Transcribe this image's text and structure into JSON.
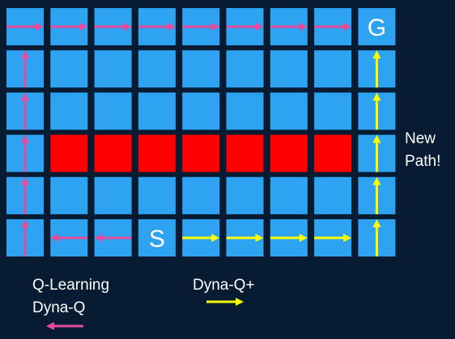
{
  "colors": {
    "background": "#071c33",
    "cell": "#2ea3f2",
    "wall": "#ff0000",
    "q_arrow": "#e84a9a",
    "dyna_plus_arrow": "#ffff00",
    "cell_text": "#ffffff"
  },
  "grid": {
    "rows": 6,
    "cols": 9,
    "walls": [
      [
        3,
        1
      ],
      [
        3,
        2
      ],
      [
        3,
        3
      ],
      [
        3,
        4
      ],
      [
        3,
        5
      ],
      [
        3,
        6
      ],
      [
        3,
        7
      ]
    ],
    "goal": {
      "row": 0,
      "col": 8,
      "label": "G"
    },
    "start": {
      "row": 5,
      "col": 3,
      "label": "S"
    }
  },
  "paths": {
    "q_learning_dyna_q": [
      {
        "row": 5,
        "col": 2,
        "dir": "left"
      },
      {
        "row": 5,
        "col": 1,
        "dir": "left"
      },
      {
        "row": 5,
        "col": 0,
        "dir": "up"
      },
      {
        "row": 4,
        "col": 0,
        "dir": "up"
      },
      {
        "row": 3,
        "col": 0,
        "dir": "up"
      },
      {
        "row": 2,
        "col": 0,
        "dir": "up"
      },
      {
        "row": 1,
        "col": 0,
        "dir": "up"
      },
      {
        "row": 0,
        "col": 0,
        "dir": "right"
      },
      {
        "row": 0,
        "col": 1,
        "dir": "right"
      },
      {
        "row": 0,
        "col": 2,
        "dir": "right"
      },
      {
        "row": 0,
        "col": 3,
        "dir": "right"
      },
      {
        "row": 0,
        "col": 4,
        "dir": "right"
      },
      {
        "row": 0,
        "col": 5,
        "dir": "right"
      },
      {
        "row": 0,
        "col": 6,
        "dir": "right"
      },
      {
        "row": 0,
        "col": 7,
        "dir": "right"
      }
    ],
    "dyna_q_plus": [
      {
        "row": 5,
        "col": 4,
        "dir": "right"
      },
      {
        "row": 5,
        "col": 5,
        "dir": "right"
      },
      {
        "row": 5,
        "col": 6,
        "dir": "right"
      },
      {
        "row": 5,
        "col": 7,
        "dir": "right"
      },
      {
        "row": 5,
        "col": 8,
        "dir": "up"
      },
      {
        "row": 4,
        "col": 8,
        "dir": "up"
      },
      {
        "row": 3,
        "col": 8,
        "dir": "up"
      },
      {
        "row": 2,
        "col": 8,
        "dir": "up"
      },
      {
        "row": 1,
        "col": 8,
        "dir": "up"
      }
    ]
  },
  "annotation": {
    "line1": "New",
    "line2": "Path!"
  },
  "legend": {
    "q_learning": "Q-Learning",
    "dyna_q": "Dyna-Q",
    "dyna_q_plus": "Dyna-Q+"
  }
}
